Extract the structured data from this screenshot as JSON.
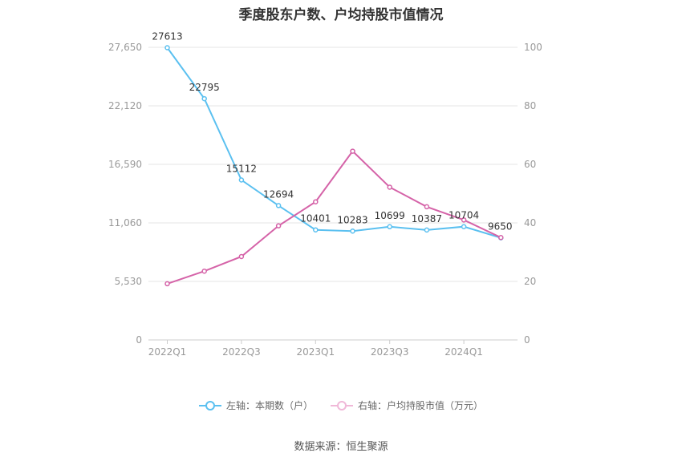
{
  "title": "季度股东户数、户均持股市值情况",
  "source": "数据来源：恒生聚源",
  "colors": {
    "left_series": "#5bc0f0",
    "right_series": "#d563a8",
    "grid": "#e6e6e6",
    "axis_text": "#999999"
  },
  "chart_data": {
    "type": "line",
    "title": "季度股东户数、户均持股市值情况",
    "x": [
      "2022Q1",
      "2022Q2",
      "2022Q3",
      "2022Q4",
      "2023Q1",
      "2023Q2",
      "2023Q3",
      "2023Q4",
      "2024Q1",
      "2024Q2"
    ],
    "x_tick_labels": [
      "2022Q1",
      "2022Q3",
      "2023Q1",
      "2023Q3",
      "2024Q1"
    ],
    "y_left": {
      "ylim": [
        0,
        27650
      ],
      "ticks": [
        "0",
        "5,530",
        "11,060",
        "16,590",
        "22,120",
        "27,650"
      ]
    },
    "y_right": {
      "ylim": [
        0,
        100
      ],
      "ticks": [
        "0",
        "20",
        "40",
        "60",
        "80",
        "100"
      ]
    },
    "grid": true,
    "legend_position": "bottom",
    "series": [
      {
        "name": "左轴：本期数（户）",
        "axis": "left",
        "values": [
          27613,
          22795,
          15112,
          12694,
          10401,
          10283,
          10699,
          10387,
          10704,
          9650
        ],
        "data_labels": [
          "27613",
          "22795",
          "15112",
          "12694",
          "10401",
          "10283",
          "10699",
          "10387",
          "10704",
          "9650"
        ]
      },
      {
        "name": "右轴：户均持股市值（万元）",
        "axis": "right",
        "values": [
          19.2,
          23.5,
          28.5,
          39.0,
          47.2,
          64.5,
          52.2,
          45.5,
          41.0,
          35.0
        ]
      }
    ]
  }
}
